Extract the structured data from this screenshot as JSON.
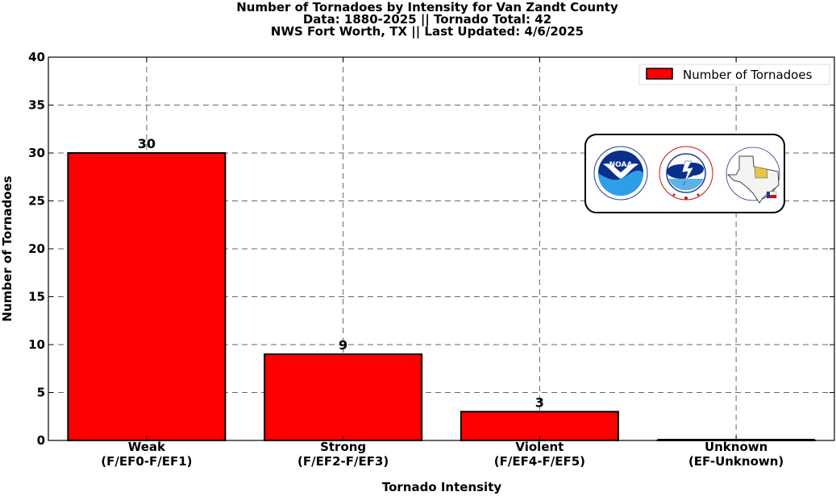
{
  "chart_data": {
    "type": "bar",
    "title_lines": [
      "Number of Tornadoes by Intensity for Van Zandt County",
      "Data: 1880-2025 || Tornado Total: 42",
      "NWS Fort Worth, TX || Last Updated: 4/6/2025"
    ],
    "categories": [
      [
        "Weak",
        "(F/EF0-F/EF1)"
      ],
      [
        "Strong",
        "(F/EF2-F/EF3)"
      ],
      [
        "Violent",
        "(F/EF4-F/EF5)"
      ],
      [
        "Unknown",
        "(EF-Unknown)"
      ]
    ],
    "values": [
      30,
      9,
      3,
      0
    ],
    "data_labels": [
      "30",
      "9",
      "3",
      ""
    ],
    "xlabel": "Tornado Intensity",
    "ylabel": "Number of Tornadoes",
    "ylim": [
      0,
      40
    ],
    "yticks": [
      0,
      5,
      10,
      15,
      20,
      25,
      30,
      35,
      40
    ],
    "legend": {
      "label": "Number of Tornadoes",
      "position": "top-right"
    },
    "grid": true,
    "bar_color": "#ff0000",
    "edge_color": "#000000"
  },
  "logos": [
    "noaa-logo",
    "national-weather-service-logo",
    "nws-fort-worth-texas-logo"
  ]
}
